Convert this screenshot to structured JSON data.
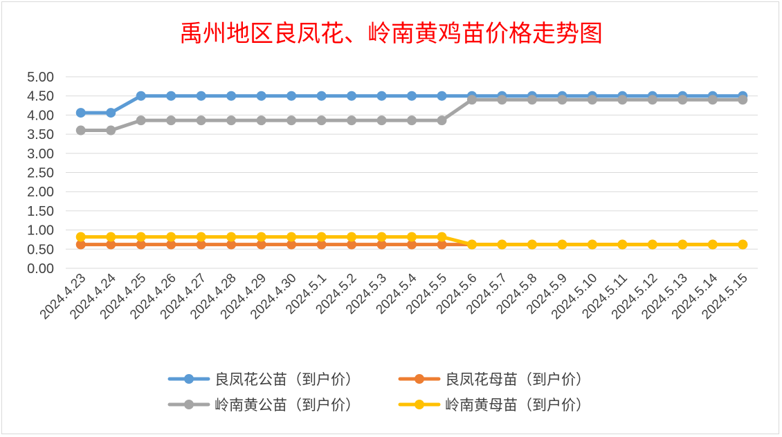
{
  "chart_data": {
    "type": "line",
    "title": "禹州地区良凤花、岭南黄鸡苗价格走势图",
    "categories": [
      "2024.4.23",
      "2024.4.24",
      "2024.4.25",
      "2024.4.26",
      "2024.4.27",
      "2024.4.28",
      "2024.4.29",
      "2024.4.30",
      "2024.5.1",
      "2024.5.2",
      "2024.5.3",
      "2024.5.4",
      "2024.5.5",
      "2024.5.6",
      "2024.5.7",
      "2024.5.8",
      "2024.5.9",
      "2024.5.10",
      "2024.5.11",
      "2024.5.12",
      "2024.5.13",
      "2024.5.14",
      "2024.5.15"
    ],
    "y_ticks": [
      "0.00",
      "0.50",
      "1.00",
      "1.50",
      "2.00",
      "2.50",
      "3.00",
      "3.50",
      "4.00",
      "4.50",
      "5.00"
    ],
    "ylim": [
      0,
      5
    ],
    "grid": true,
    "legend_position": "bottom",
    "series": [
      {
        "name": "良凤花公苗（到户价）",
        "color": "#5b9bd5",
        "values": [
          4.06,
          4.06,
          4.5,
          4.5,
          4.5,
          4.5,
          4.5,
          4.5,
          4.5,
          4.5,
          4.5,
          4.5,
          4.5,
          4.5,
          4.5,
          4.5,
          4.5,
          4.5,
          4.5,
          4.5,
          4.5,
          4.5,
          4.5
        ]
      },
      {
        "name": "良凤花母苗（到户价）",
        "color": "#ed7d31",
        "values": [
          0.62,
          0.62,
          0.62,
          0.62,
          0.62,
          0.62,
          0.62,
          0.62,
          0.62,
          0.62,
          0.62,
          0.62,
          0.62,
          0.62,
          0.62,
          0.62,
          0.62,
          0.62,
          0.62,
          0.62,
          0.62,
          0.62,
          0.62
        ]
      },
      {
        "name": "岭南黄公苗（到户价）",
        "color": "#a5a5a5",
        "values": [
          3.6,
          3.6,
          3.86,
          3.86,
          3.86,
          3.86,
          3.86,
          3.86,
          3.86,
          3.86,
          3.86,
          3.86,
          3.86,
          4.4,
          4.4,
          4.4,
          4.4,
          4.4,
          4.4,
          4.4,
          4.4,
          4.4,
          4.4
        ]
      },
      {
        "name": "岭南黄母苗（到户价）",
        "color": "#ffc000",
        "values": [
          0.82,
          0.82,
          0.82,
          0.82,
          0.82,
          0.82,
          0.82,
          0.82,
          0.82,
          0.82,
          0.82,
          0.82,
          0.82,
          0.62,
          0.62,
          0.62,
          0.62,
          0.62,
          0.62,
          0.62,
          0.62,
          0.62,
          0.62
        ]
      }
    ]
  }
}
